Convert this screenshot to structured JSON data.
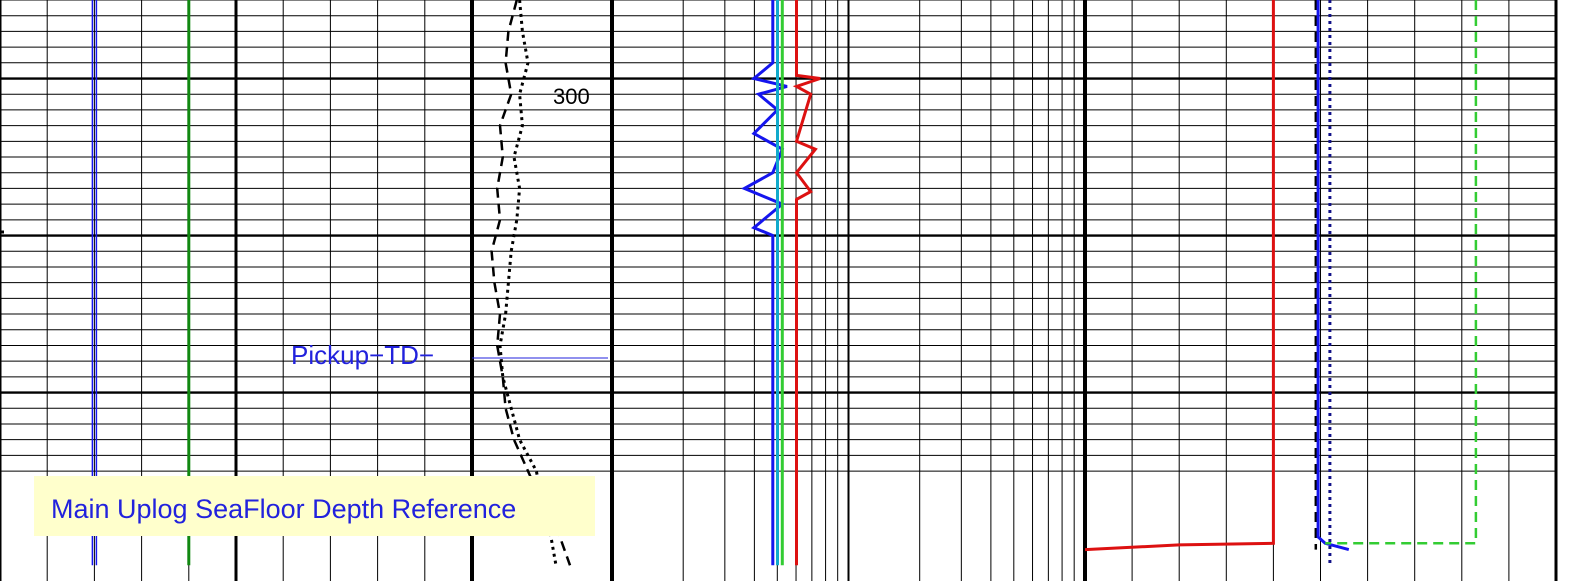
{
  "chart_data": {
    "type": "line",
    "title": "",
    "depth_tick_label": "300",
    "annotation": "Pickup−TD−",
    "reference_label": "Main Uplog SeaFloor Depth Reference",
    "depth_range": [
      250,
      620
    ],
    "colors": {
      "blue": "#1515ee",
      "green": "#118811",
      "red": "#dd1111",
      "cyan": "#11aacc",
      "light_green": "#33cc33",
      "navy": "#111188",
      "annotation_blue": "#2222dd",
      "box_fill": "#ffffcc"
    },
    "tracks": [
      {
        "name": "track-1",
        "scale": "linear",
        "curves": [
          {
            "color": "blue",
            "style": "double",
            "depth": [
              250,
              610
            ],
            "value": [
              0.2,
              0.2
            ]
          },
          {
            "color": "green",
            "style": "solid",
            "depth": [
              250,
              610
            ],
            "value": [
              0.4,
              0.4
            ]
          }
        ]
      },
      {
        "name": "track-2",
        "scale": "linear",
        "curves": [
          {
            "color": "black",
            "style": "dashed",
            "depth": [
              250,
              270,
              290,
              310,
              330,
              350,
              370,
              390,
              410,
              430,
              450,
              470,
              490,
              510,
              530,
              550,
              570,
              590,
              610
            ],
            "value": [
              0.32,
              0.26,
              0.24,
              0.28,
              0.2,
              0.22,
              0.18,
              0.2,
              0.14,
              0.16,
              0.2,
              0.18,
              0.22,
              0.24,
              0.3,
              0.4,
              0.5,
              0.62,
              0.7
            ]
          },
          {
            "color": "black",
            "style": "dotted",
            "depth": [
              250,
              270,
              290,
              310,
              330,
              350,
              370,
              390,
              410,
              430,
              450,
              470,
              490,
              510,
              530,
              550,
              570,
              590,
              610
            ],
            "value": [
              0.34,
              0.36,
              0.4,
              0.34,
              0.36,
              0.3,
              0.34,
              0.32,
              0.28,
              0.26,
              0.24,
              0.2,
              0.22,
              0.28,
              0.34,
              0.46,
              0.5,
              0.56,
              0.6
            ]
          }
        ]
      },
      {
        "name": "track-3",
        "scale": "log",
        "curves": [
          {
            "color": "blue",
            "style": "solid",
            "depth": [
              250,
              290,
              300,
              305,
              310,
              320,
              335,
              345,
              360,
              370,
              380,
              395,
              400,
              610
            ],
            "value": [
              0.34,
              0.34,
              0.3,
              0.37,
              0.31,
              0.35,
              0.3,
              0.36,
              0.34,
              0.28,
              0.36,
              0.3,
              0.34,
              0.34
            ]
          },
          {
            "color": "cyan",
            "style": "solid",
            "depth": [
              250,
              610
            ],
            "value": [
              0.35,
              0.35
            ]
          },
          {
            "color": "light_green",
            "style": "solid",
            "depth": [
              250,
              610
            ],
            "value": [
              0.36,
              0.36
            ]
          },
          {
            "color": "red",
            "style": "solid",
            "depth": [
              250,
              298,
              300,
              305,
              310,
              340,
              345,
              360,
              372,
              377,
              385,
              610
            ],
            "value": [
              0.39,
              0.39,
              0.44,
              0.39,
              0.42,
              0.39,
              0.43,
              0.39,
              0.42,
              0.39,
              0.39,
              0.39
            ]
          }
        ]
      },
      {
        "name": "track-4",
        "scale": "linear",
        "curves": [
          {
            "color": "red",
            "style": "solid",
            "depth": [
              250,
              596,
              597,
              600
            ],
            "value": [
              0.4,
              0.4,
              0.2,
              0.0
            ]
          },
          {
            "color": "black",
            "style": "dashed",
            "depth": [
              250,
              596,
              600
            ],
            "value": [
              0.49,
              0.49,
              0.49
            ]
          },
          {
            "color": "blue",
            "style": "solid",
            "depth": [
              250,
              592,
              596,
              600
            ],
            "value": [
              0.495,
              0.495,
              0.51,
              0.56
            ]
          },
          {
            "color": "navy",
            "style": "dotted",
            "depth": [
              250,
              610
            ],
            "value": [
              0.52,
              0.52
            ]
          },
          {
            "color": "light_green",
            "style": "dashed",
            "depth": [
              250,
              596,
              596
            ],
            "value": [
              0.83,
              0.83,
              0.51
            ]
          }
        ]
      }
    ]
  }
}
